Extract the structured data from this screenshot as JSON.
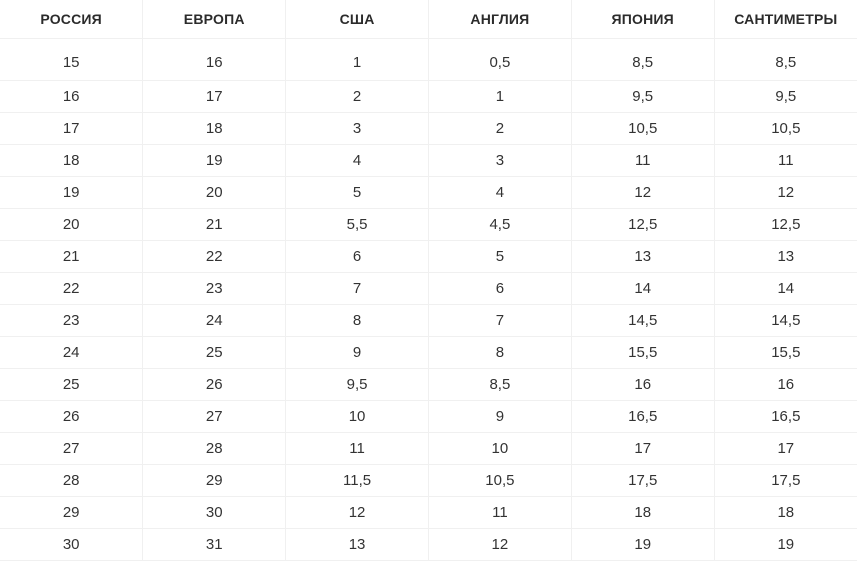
{
  "table": {
    "headers": [
      "РОССИЯ",
      "ЕВРОПА",
      "США",
      "АНГЛИЯ",
      "ЯПОНИЯ",
      "САНТИМЕТРЫ"
    ],
    "rows": [
      [
        "15",
        "16",
        "1",
        "0,5",
        "8,5",
        "8,5"
      ],
      [
        "16",
        "17",
        "2",
        "1",
        "9,5",
        "9,5"
      ],
      [
        "17",
        "18",
        "3",
        "2",
        "10,5",
        "10,5"
      ],
      [
        "18",
        "19",
        "4",
        "3",
        "11",
        "11"
      ],
      [
        "19",
        "20",
        "5",
        "4",
        "12",
        "12"
      ],
      [
        "20",
        "21",
        "5,5",
        "4,5",
        "12,5",
        "12,5"
      ],
      [
        "21",
        "22",
        "6",
        "5",
        "13",
        "13"
      ],
      [
        "22",
        "23",
        "7",
        "6",
        "14",
        "14"
      ],
      [
        "23",
        "24",
        "8",
        "7",
        "14,5",
        "14,5"
      ],
      [
        "24",
        "25",
        "9",
        "8",
        "15,5",
        "15,5"
      ],
      [
        "25",
        "26",
        "9,5",
        "8,5",
        "16",
        "16"
      ],
      [
        "26",
        "27",
        "10",
        "9",
        "16,5",
        "16,5"
      ],
      [
        "27",
        "28",
        "11",
        "10",
        "17",
        "17"
      ],
      [
        "28",
        "29",
        "11,5",
        "10,5",
        "17,5",
        "17,5"
      ],
      [
        "29",
        "30",
        "12",
        "11",
        "18",
        "18"
      ],
      [
        "30",
        "31",
        "13",
        "12",
        "19",
        "19"
      ]
    ]
  },
  "colors": {
    "header_text": "#2b2b2b",
    "cell_text": "#333333",
    "grid_border": "#f0f0f0",
    "background": "#ffffff"
  }
}
